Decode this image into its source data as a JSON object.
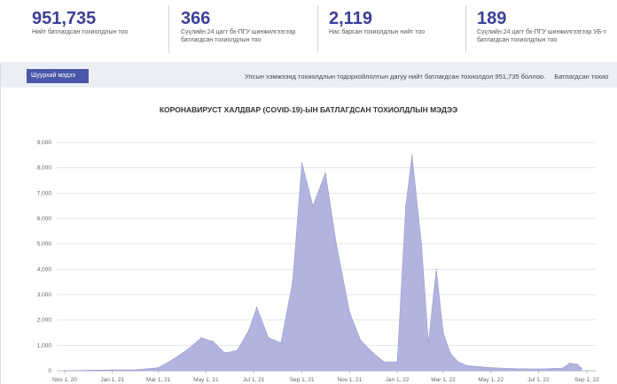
{
  "stats": [
    {
      "value": "951,735",
      "label_lines": [
        "Нийт батлагдсан тохиолдлын тоо"
      ]
    },
    {
      "value": "366",
      "label_lines": [
        "Сүүлийн 24 цагт бх-ПГУ шинжилгээгээр",
        "батлагдсан тохиолдлын тоо"
      ]
    },
    {
      "value": "2,119",
      "label_lines": [
        "Нас барсан тохиолдлын нийт тоо"
      ]
    },
    {
      "value": "189",
      "label_lines": [
        "Сүүлийн 24 цагт бх-ПГУ шинжилгээгээр УБ-т",
        "батлагдсан тохиолдлын тоо"
      ]
    }
  ],
  "news": {
    "tag": "Шуурхай мэдээ",
    "ticker": [
      "Улсын хэмжээнд тохиолдлын тодорхойлолтын дагуу нийт батлагдсан тохиолдол 951,735 боллоо.",
      "Батлагдсан тохио"
    ]
  },
  "chart_data": {
    "type": "area",
    "title": "КОРОНАВИРУСТ ХАЛДВАР (COVID-19)-ЫН БАТЛАГДСАН ТОХИОЛДЛЫН МЭДЭЭ",
    "xlabel": "",
    "ylabel": "",
    "ylim": [
      0,
      9300
    ],
    "grid": true,
    "color": "#b3b3e0",
    "y_ticks": [
      "0",
      "1,000",
      "2,000",
      "3,000",
      "4,000",
      "5,000",
      "6,000",
      "7,000",
      "8,000",
      "9,000"
    ],
    "x_ticks": [
      "Nov 1, 20",
      "Jan 1, 21",
      "Mar 1, 21",
      "May 1, 21",
      "Jul 1, 21",
      "Sep 1, 21",
      "Nov 1, 21",
      "Jan 1, 22",
      "Mar 1, 22",
      "May 1, 22",
      "Jul 1, 22",
      "Sep 1, 22"
    ],
    "x": [
      "2020-11-01",
      "2020-12-01",
      "2021-01-01",
      "2021-02-01",
      "2021-03-01",
      "2021-03-20",
      "2021-04-10",
      "2021-04-25",
      "2021-05-10",
      "2021-05-25",
      "2021-06-10",
      "2021-06-25",
      "2021-07-05",
      "2021-07-20",
      "2021-08-05",
      "2021-08-20",
      "2021-09-01",
      "2021-09-15",
      "2021-10-01",
      "2021-10-15",
      "2021-11-01",
      "2021-11-15",
      "2021-12-01",
      "2021-12-15",
      "2022-01-01",
      "2022-01-12",
      "2022-01-20",
      "2022-02-01",
      "2022-02-10",
      "2022-02-20",
      "2022-03-01",
      "2022-03-10",
      "2022-03-20",
      "2022-04-01",
      "2022-05-01",
      "2022-06-01",
      "2022-07-01",
      "2022-08-01",
      "2022-08-10",
      "2022-08-20",
      "2022-08-25"
    ],
    "values": [
      5,
      15,
      30,
      40,
      120,
      450,
      900,
      1300,
      1150,
      700,
      800,
      1600,
      2500,
      1300,
      1100,
      3500,
      8200,
      6500,
      7800,
      5000,
      2300,
      1200,
      700,
      350,
      350,
      6500,
      8500,
      5000,
      1100,
      4000,
      1500,
      700,
      350,
      200,
      120,
      80,
      70,
      100,
      300,
      250,
      100
    ]
  }
}
